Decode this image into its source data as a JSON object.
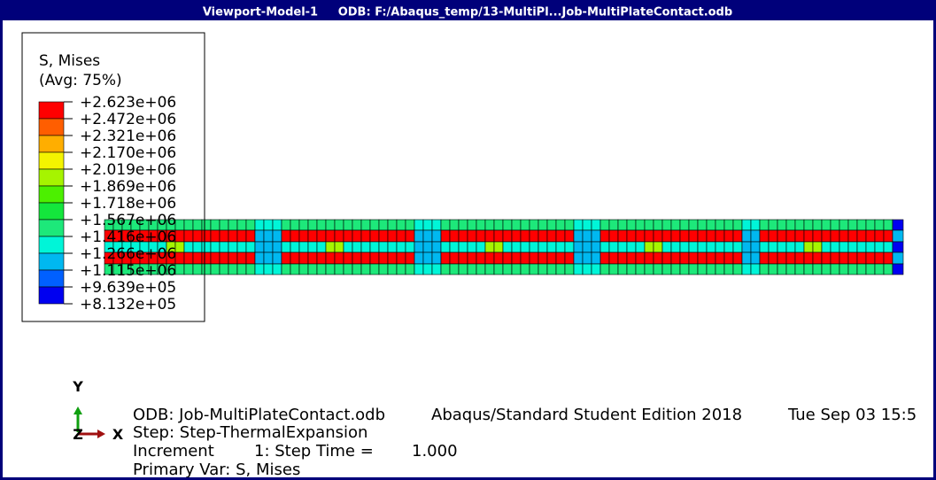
{
  "window": {
    "title": "Viewport-Model-1     ODB: F:/Abaqus_temp/13-MultiPl...Job-MultiPlateContact.odb"
  },
  "legend": {
    "title_lines": [
      "S, Mises",
      "(Avg: 75%)"
    ],
    "labels": [
      "+2.623e+06",
      "+2.472e+06",
      "+2.321e+06",
      "+2.170e+06",
      "+2.019e+06",
      "+1.869e+06",
      "+1.718e+06",
      "+1.567e+06",
      "+1.416e+06",
      "+1.266e+06",
      "+1.115e+06",
      "+9.639e+05",
      "+8.132e+05"
    ],
    "colors": [
      "#ff0000",
      "#ff5e00",
      "#ffae00",
      "#f4f400",
      "#a6f400",
      "#4cf000",
      "#14e63c",
      "#1de87a",
      "#00f5d8",
      "#00b8f0",
      "#0060ff",
      "#0000f0"
    ]
  },
  "triad": {
    "y_label": "Y",
    "x_label": "X",
    "z_label": "Z"
  },
  "info": {
    "line1": [
      "ODB: Job-MultiPlateContact.odb",
      "Abaqus/Standard Student Edition 2018",
      "Tue Sep 03 15:5"
    ],
    "line2": "Step: Step-ThermalExpansion",
    "line3": [
      "Increment",
      "1: Step Time =",
      "1.000"
    ],
    "line4": "Primary Var: S, Mises"
  }
}
